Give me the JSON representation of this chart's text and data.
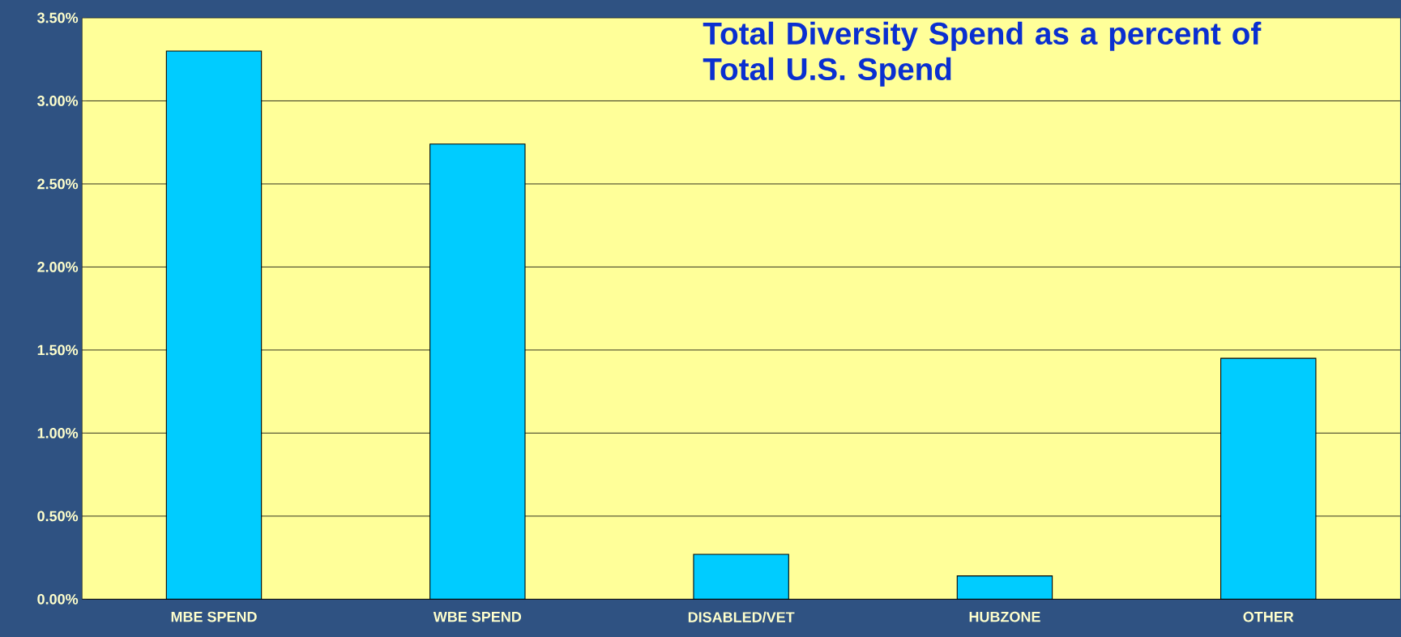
{
  "chart_data": {
    "type": "bar",
    "title": "Total Diversity Spend as a percent of Total U.S. Spend",
    "categories": [
      "MBE SPEND",
      "WBE SPEND",
      "DISABLED/VET",
      "HUBZONE",
      "OTHER"
    ],
    "values": [
      3.3,
      2.74,
      0.27,
      0.14,
      1.45
    ],
    "color": "#00ccff",
    "ylim": [
      0,
      3.5
    ],
    "yticks": [
      {
        "value": 0,
        "label": "0.00%"
      },
      {
        "value": 0.5,
        "label": "0.50%"
      },
      {
        "value": 1,
        "label": "1.00%"
      },
      {
        "value": 1.5,
        "label": "1.50%"
      },
      {
        "value": 2,
        "label": "2.00%"
      },
      {
        "value": 2.5,
        "label": "2.50%"
      },
      {
        "value": 3,
        "label": "3.00%"
      },
      {
        "value": 3.5,
        "label": "3.50%"
      }
    ],
    "grid": "y"
  }
}
